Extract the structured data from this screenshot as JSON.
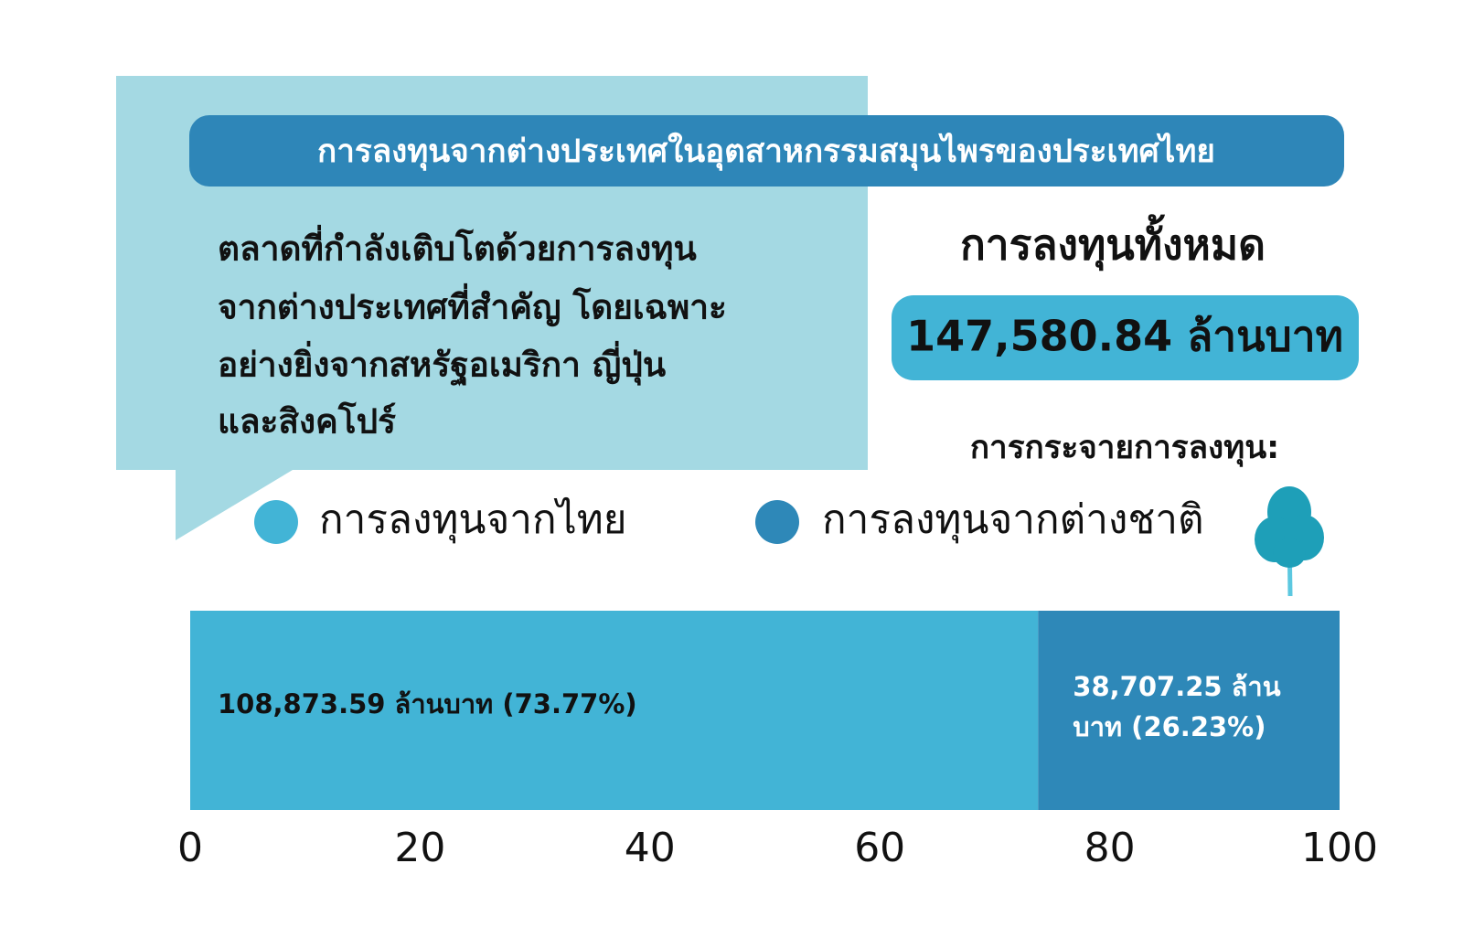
{
  "chart_data": {
    "type": "stacked_bar",
    "title": "การลงทุนจากต่างประเทศในอุตสาหกรรมสมุนไพรของประเทศไทย",
    "description": [
      "ตลาดที่กำลังเติบโตด้วยการลงทุน",
      "จากต่างประเทศที่สำคัญ โดยเฉพาะ",
      "อย่างยิ่งจากสหรัฐอเมริกา ญี่ปุ่น",
      "และสิงคโปร์"
    ],
    "total_heading": "การลงทุนทั้งหมด",
    "total_value": "147,580.84 ล้านบาท",
    "distribution_heading": "การกระจายการลงทุน:",
    "series": [
      {
        "name": "การลงทุนจากไทย",
        "color": "#42b4d6",
        "values": [
          73.77
        ],
        "value_labels": [
          "108,873.59 ล้านบาท (73.77%)"
        ]
      },
      {
        "name": "การลงทุนจากต่างชาติ",
        "color": "#2e88b8",
        "values": [
          26.23
        ],
        "value_labels": [
          "38,707.25 ล้านบาท (26.23%)"
        ]
      }
    ],
    "xlim": [
      0,
      100
    ],
    "xticks": [
      0,
      20,
      40,
      60,
      80,
      100
    ]
  }
}
